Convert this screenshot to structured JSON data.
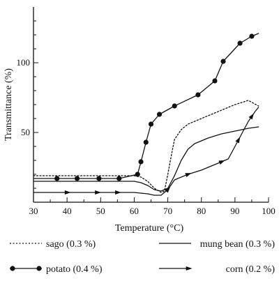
{
  "chart_data": {
    "type": "line",
    "title": "",
    "xlabel": "Temperature (°C)",
    "ylabel": "Transmittance (%)",
    "xlim": [
      30,
      100
    ],
    "ylim": [
      0,
      140
    ],
    "xticks": [
      "30",
      "40",
      "50",
      "60",
      "70",
      "80",
      "90",
      "100"
    ],
    "yticks": [
      "50",
      "100"
    ],
    "grid": false,
    "legend_placement": "bottom",
    "series": [
      {
        "name": "sago (0.3 %)",
        "style": "dotted",
        "marker": "none",
        "color": "#111111",
        "x": [
          30,
          55,
          60,
          62,
          64,
          66,
          68,
          69,
          70,
          71,
          72,
          74,
          76,
          80,
          85,
          90,
          94,
          97
        ],
        "y": [
          19,
          19,
          19,
          18,
          15,
          10,
          7,
          8,
          20,
          33,
          45,
          52,
          56,
          60,
          65,
          70,
          73,
          69
        ]
      },
      {
        "name": "mung bean (0.3 %)",
        "style": "solid",
        "marker": "none",
        "color": "#111111",
        "x": [
          30,
          60,
          62,
          64,
          66,
          68,
          70,
          72,
          74,
          76,
          78,
          82,
          86,
          90,
          94,
          97
        ],
        "y": [
          15,
          15,
          14,
          12,
          9,
          8,
          10,
          19,
          30,
          38,
          42,
          46,
          49,
          51,
          53,
          54
        ]
      },
      {
        "name": "potato (0.4 %)",
        "style": "solid",
        "marker": "circle",
        "color": "#111111",
        "x": [
          30,
          37,
          43,
          49.5,
          55.5,
          61,
          62,
          63.5,
          65,
          67.5,
          72,
          79,
          84,
          86.5,
          91.5,
          95,
          97
        ],
        "y": [
          17,
          17,
          17,
          17,
          17,
          20,
          29,
          43,
          56,
          63,
          69,
          77,
          87,
          101,
          114,
          119,
          121
        ]
      },
      {
        "name": "corn (0.2 %)",
        "style": "solid",
        "marker": "arrow",
        "color": "#111111",
        "x": [
          30,
          60,
          64,
          66,
          68,
          70,
          72,
          76,
          80,
          85,
          88,
          90,
          92,
          94,
          96,
          97
        ],
        "y": [
          7,
          7,
          6,
          5,
          5,
          9,
          16,
          20,
          23,
          28,
          31,
          40,
          49,
          58,
          65,
          68
        ],
        "markers_at": [
          40,
          49,
          55,
          70,
          76,
          86,
          91,
          95
        ]
      }
    ]
  }
}
